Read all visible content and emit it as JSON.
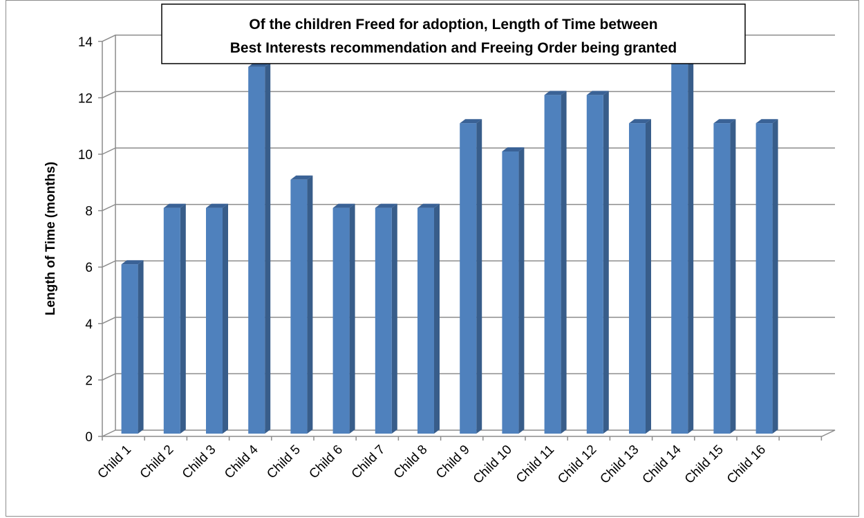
{
  "chart_data": {
    "type": "bar",
    "title": [
      "Of the children Freed for adoption, Length of Time between",
      "Best Interests recommendation and Freeing Order being granted"
    ],
    "xlabel": "",
    "ylabel": "Length of Time (months)",
    "ylim": [
      0,
      14
    ],
    "yticks": [
      0,
      2,
      4,
      6,
      8,
      10,
      12,
      14
    ],
    "grid": true,
    "style": "3d-columns",
    "bar_color": "#4F81BD",
    "bar_side_color": "#385D8A",
    "bar_top_color": "#3A6296",
    "categories": [
      "Child 1",
      "Child 2",
      "Child 3",
      "Child 4",
      "Child 5",
      "Child 6",
      "Child 7",
      "Child 8",
      "Child 9",
      "Child 10",
      "Child 11",
      "Child 12",
      "Child 13",
      "Child 14",
      "Child 15",
      "Child 16"
    ],
    "values": [
      6,
      8,
      8,
      13,
      9,
      8,
      8,
      8,
      11,
      10,
      12,
      12,
      11,
      13.5,
      11,
      11
    ]
  }
}
